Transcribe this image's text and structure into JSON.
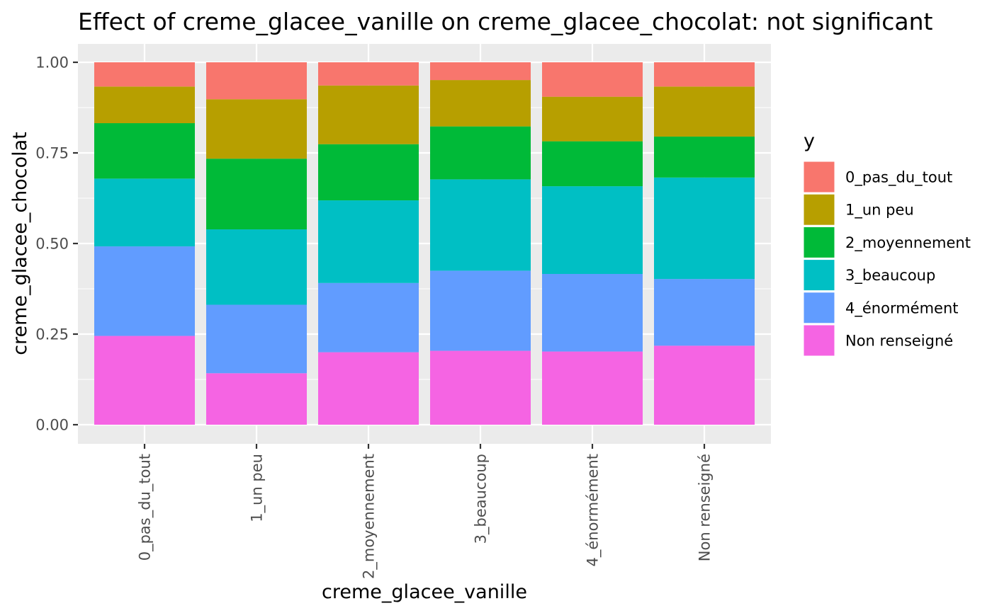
{
  "chart_data": {
    "type": "bar",
    "stacked": "fill",
    "title": "Effect of creme_glacee_vanille on creme_glacee_chocolat: not significant",
    "xlabel": "creme_glacee_vanille",
    "ylabel": "creme_glacee_chocolat",
    "categories": [
      "0_pas_du_tout",
      "1_un peu",
      "2_moyennement",
      "3_beaucoup",
      "4_énormément",
      "Non renseigné"
    ],
    "ylim": [
      0,
      1
    ],
    "yticks": [
      "0.00",
      "0.25",
      "0.50",
      "0.75",
      "1.00"
    ],
    "legend_title": "y",
    "legend_position": "right",
    "grid": true,
    "series": [
      {
        "name": "Non renseigné",
        "color": "#F564E3",
        "values": [
          0.245,
          0.142,
          0.2,
          0.204,
          0.202,
          0.218
        ]
      },
      {
        "name": "4_énormément",
        "color": "#619CFF",
        "values": [
          0.247,
          0.189,
          0.191,
          0.221,
          0.214,
          0.184
        ]
      },
      {
        "name": "3_beaucoup",
        "color": "#00BFC4",
        "values": [
          0.187,
          0.208,
          0.228,
          0.252,
          0.242,
          0.28
        ]
      },
      {
        "name": "2_moyennement",
        "color": "#00BA38",
        "values": [
          0.153,
          0.195,
          0.155,
          0.146,
          0.124,
          0.113
        ]
      },
      {
        "name": "1_un peu",
        "color": "#B79F00",
        "values": [
          0.101,
          0.164,
          0.162,
          0.128,
          0.123,
          0.138
        ]
      },
      {
        "name": "0_pas_du_tout",
        "color": "#F8766D",
        "values": [
          0.067,
          0.102,
          0.064,
          0.049,
          0.095,
          0.067
        ]
      }
    ],
    "legend_order": [
      "0_pas_du_tout",
      "1_un peu",
      "2_moyennement",
      "3_beaucoup",
      "4_énormément",
      "Non renseigné"
    ]
  }
}
